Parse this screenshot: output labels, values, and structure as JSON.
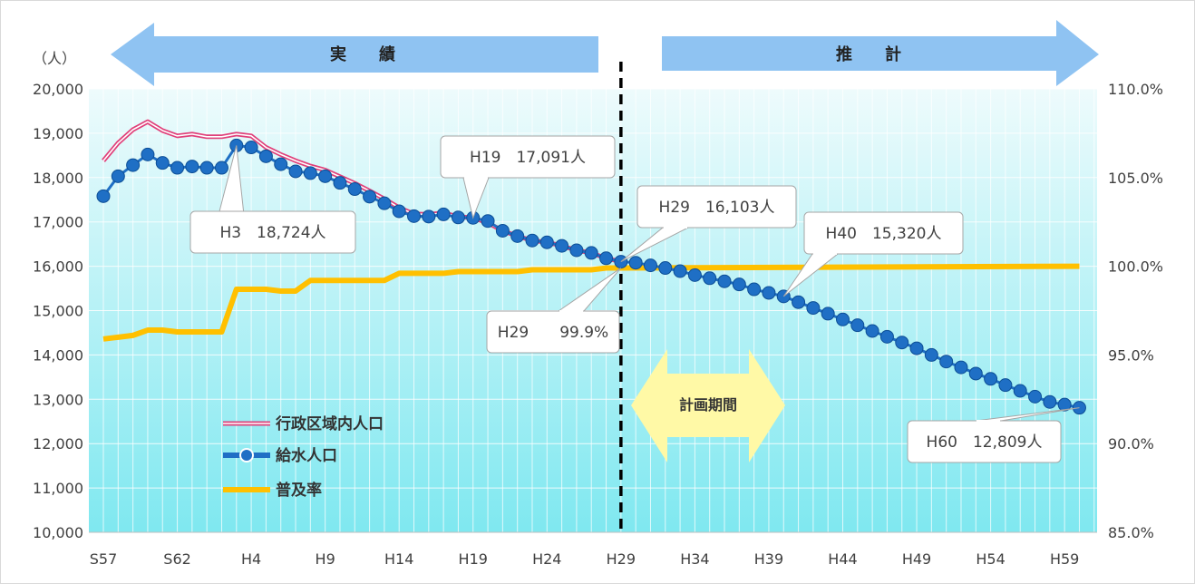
{
  "chart_data": {
    "type": "line",
    "y_unit_label": "（人）",
    "x_tick_labels": [
      "S57",
      "S62",
      "H4",
      "H9",
      "H14",
      "H19",
      "H24",
      "H29",
      "H34",
      "H39",
      "H44",
      "H49",
      "H54",
      "H59"
    ],
    "y_left_ticks": [
      "20,000",
      "19,000",
      "18,000",
      "17,000",
      "16,000",
      "15,000",
      "14,000",
      "13,000",
      "12,000",
      "11,000",
      "10,000"
    ],
    "y_right_ticks": [
      "110.0%",
      "105.0%",
      "100.0%",
      "95.0%",
      "90.0%",
      "85.0%"
    ],
    "ylim_left": [
      10000,
      20000
    ],
    "ylim_right": [
      85.0,
      110.0
    ],
    "x_range": [
      "S57",
      "H60"
    ],
    "grid": true,
    "legend_position": "bottom-left",
    "colors": {
      "admin_population": "#e0407a",
      "served_population": "#1f6fc5",
      "coverage": "#ffc000",
      "arrow": "#8fc3f2",
      "plan_arrow": "#fff9a6",
      "background_top": "#eefbfc",
      "background_bottom": "#7fe8f0"
    },
    "arrows": {
      "actual": "実　　績",
      "forecast": "推　　計",
      "plan_period": "計画期間"
    },
    "series": [
      {
        "name": "行政区域内人口",
        "x": [
          "S57",
          "S58",
          "S59",
          "S60",
          "S61",
          "S62",
          "S63",
          "H1",
          "H2",
          "H3",
          "H4",
          "H5",
          "H6",
          "H7",
          "H8",
          "H9",
          "H10",
          "H11",
          "H12",
          "H13",
          "H14",
          "H15",
          "H16",
          "H17",
          "H18",
          "H19",
          "H20",
          "H21",
          "H22",
          "H23",
          "H24",
          "H25",
          "H26",
          "H27",
          "H28",
          "H29"
        ],
        "values": [
          18380,
          18780,
          19080,
          19260,
          19060,
          18940,
          18980,
          18920,
          18920,
          18980,
          18940,
          18680,
          18520,
          18380,
          18260,
          18170,
          18020,
          17870,
          17700,
          17520,
          17320,
          17180,
          17170,
          17200,
          17120,
          17091,
          16980,
          16800,
          16680,
          16580,
          16540,
          16460,
          16360,
          16300,
          16180,
          16103
        ]
      },
      {
        "name": "給水人口",
        "x": [
          "S57",
          "S58",
          "S59",
          "S60",
          "S61",
          "S62",
          "S63",
          "H1",
          "H2",
          "H3",
          "H4",
          "H5",
          "H6",
          "H7",
          "H8",
          "H9",
          "H10",
          "H11",
          "H12",
          "H13",
          "H14",
          "H15",
          "H16",
          "H17",
          "H18",
          "H19",
          "H20",
          "H21",
          "H22",
          "H23",
          "H24",
          "H25",
          "H26",
          "H27",
          "H28",
          "H29",
          "H30",
          "H31",
          "H32",
          "H33",
          "H34",
          "H35",
          "H36",
          "H37",
          "H38",
          "H39",
          "H40",
          "H41",
          "H42",
          "H43",
          "H44",
          "H45",
          "H46",
          "H47",
          "H48",
          "H49",
          "H50",
          "H51",
          "H52",
          "H53",
          "H54",
          "H55",
          "H56",
          "H57",
          "H58",
          "H59",
          "H60"
        ],
        "values": [
          17580,
          18030,
          18280,
          18520,
          18330,
          18220,
          18250,
          18220,
          18220,
          18724,
          18680,
          18480,
          18300,
          18140,
          18100,
          18030,
          17880,
          17740,
          17570,
          17420,
          17240,
          17130,
          17120,
          17170,
          17100,
          17091,
          17020,
          16800,
          16680,
          16580,
          16540,
          16460,
          16360,
          16300,
          16180,
          16103,
          16080,
          16020,
          15960,
          15890,
          15800,
          15730,
          15660,
          15590,
          15480,
          15400,
          15320,
          15190,
          15060,
          14930,
          14800,
          14670,
          14540,
          14410,
          14280,
          14150,
          14000,
          13850,
          13720,
          13580,
          13460,
          13320,
          13190,
          13060,
          12940,
          12880,
          12809
        ]
      },
      {
        "name": "普及率",
        "axis": "right",
        "x": [
          "S57",
          "S58",
          "S59",
          "S60",
          "S61",
          "S62",
          "S63",
          "H1",
          "H2",
          "H3",
          "H4",
          "H5",
          "H6",
          "H7",
          "H8",
          "H9",
          "H10",
          "H11",
          "H12",
          "H13",
          "H14",
          "H15",
          "H16",
          "H17",
          "H18",
          "H19",
          "H20",
          "H21",
          "H22",
          "H23",
          "H24",
          "H25",
          "H26",
          "H27",
          "H28",
          "H29",
          "H60"
        ],
        "values": [
          95.9,
          96.0,
          96.1,
          96.4,
          96.4,
          96.3,
          96.3,
          96.3,
          96.3,
          98.7,
          98.7,
          98.7,
          98.6,
          98.6,
          99.2,
          99.2,
          99.2,
          99.2,
          99.2,
          99.2,
          99.6,
          99.6,
          99.6,
          99.6,
          99.7,
          99.7,
          99.7,
          99.7,
          99.7,
          99.8,
          99.8,
          99.8,
          99.8,
          99.8,
          99.9,
          99.9,
          100.0
        ]
      }
    ],
    "annotations": [
      {
        "text": "H3　18,724人",
        "x": "H3",
        "value": 18724
      },
      {
        "text": "H19　17,091人",
        "x": "H19",
        "value": 17091
      },
      {
        "text": "H29　16,103人",
        "x": "H29",
        "value": 16103
      },
      {
        "text": "H40　15,320人",
        "x": "H40",
        "value": 15320
      },
      {
        "text": "H29　　99.9%",
        "x": "H29",
        "value": 99.9
      },
      {
        "text": "H60　12,809人",
        "x": "H60",
        "value": 12809
      }
    ]
  }
}
